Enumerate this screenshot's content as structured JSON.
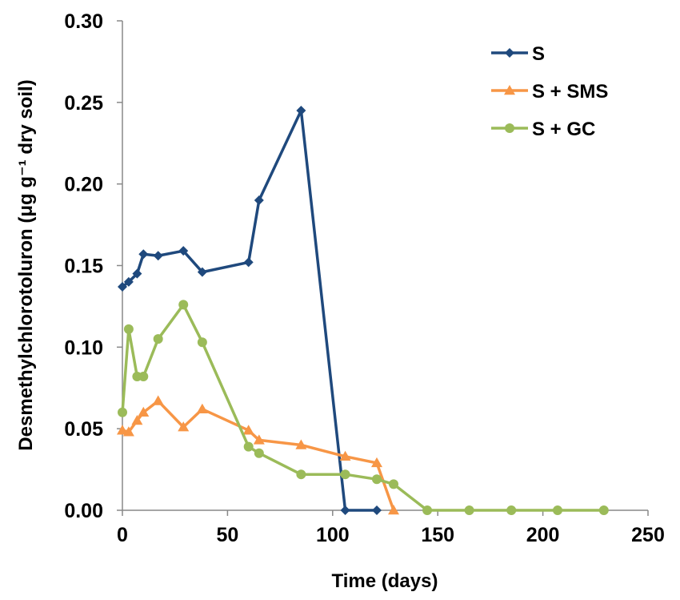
{
  "chart_data": {
    "type": "line",
    "xlabel": "Time (days)",
    "ylabel": "Desmethylchlorotoluron (μg g⁻¹ dry soil)",
    "xlim": [
      0,
      250
    ],
    "ylim": [
      0,
      0.3
    ],
    "xticks": [
      "0",
      "50",
      "100",
      "150",
      "200",
      "250"
    ],
    "yticks": [
      "0.00",
      "0.05",
      "0.10",
      "0.15",
      "0.20",
      "0.25",
      "0.30"
    ],
    "grid": false,
    "legend_position": "top-right",
    "series": [
      {
        "name": "S",
        "color": "#1F497D",
        "marker": "diamond",
        "x": [
          0,
          3,
          7,
          10,
          17,
          29,
          38,
          60,
          65,
          85,
          106,
          121
        ],
        "y": [
          0.137,
          0.14,
          0.145,
          0.157,
          0.156,
          0.159,
          0.146,
          0.152,
          0.19,
          0.245,
          0.0,
          0.0
        ]
      },
      {
        "name": "S + SMS",
        "color": "#F79646",
        "marker": "triangle",
        "x": [
          0,
          3,
          7,
          10,
          17,
          29,
          38,
          60,
          65,
          85,
          106,
          121,
          129
        ],
        "y": [
          0.049,
          0.048,
          0.055,
          0.06,
          0.067,
          0.051,
          0.062,
          0.049,
          0.043,
          0.04,
          0.033,
          0.029,
          0.0
        ]
      },
      {
        "name": "S + GC",
        "color": "#9BBB59",
        "marker": "circle",
        "x": [
          0,
          3,
          7,
          10,
          17,
          29,
          38,
          60,
          65,
          85,
          106,
          121,
          129,
          145,
          165,
          185,
          207,
          229
        ],
        "y": [
          0.06,
          0.111,
          0.082,
          0.082,
          0.105,
          0.126,
          0.103,
          0.039,
          0.035,
          0.022,
          0.022,
          0.019,
          0.016,
          0.0,
          0.0,
          0.0,
          0.0,
          0.0
        ]
      }
    ]
  }
}
